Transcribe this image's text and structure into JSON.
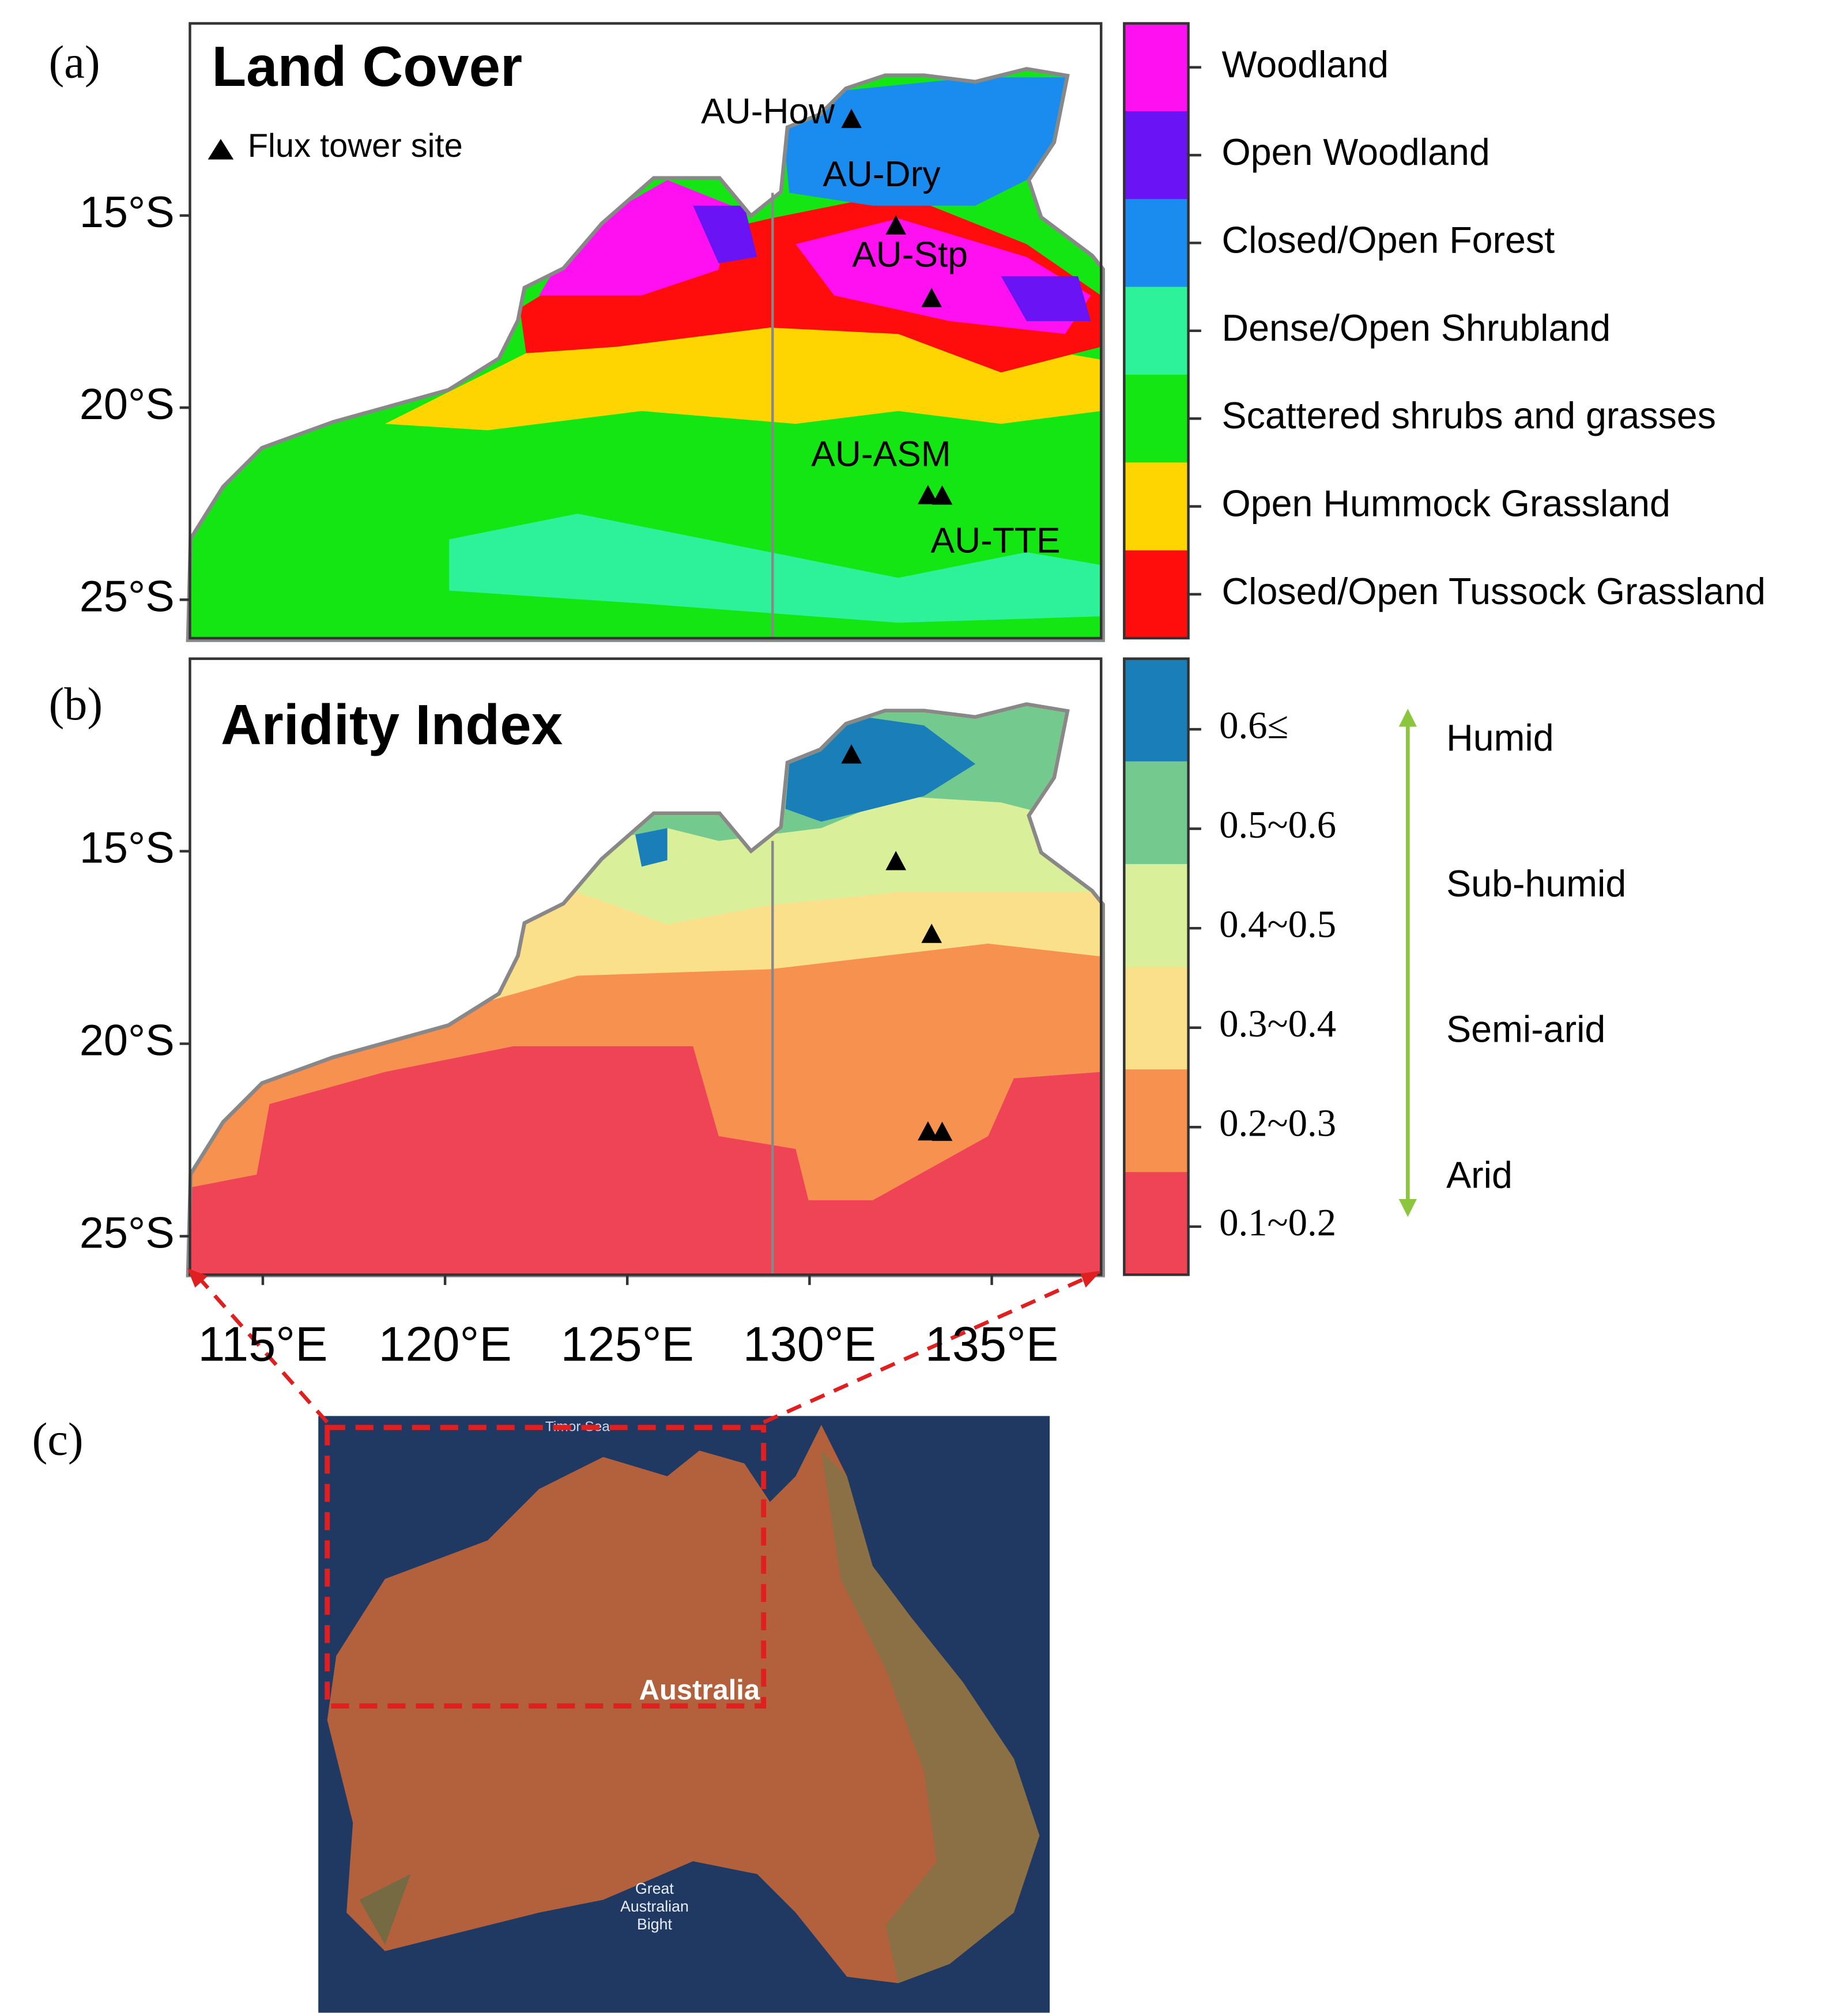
{
  "panel_a": {
    "label": "(a)",
    "title": "Land Cover",
    "marker_legend": "Flux tower site",
    "legend": [
      {
        "label": "Woodland",
        "color": "#ff10f0"
      },
      {
        "label": "Open Woodland",
        "color": "#6a14f5"
      },
      {
        "label": "Closed/Open Forest",
        "color": "#1a8cf0"
      },
      {
        "label": "Dense/Open Shrubland",
        "color": "#2df29a"
      },
      {
        "label": "Scattered shrubs and grasses",
        "color": "#14e614"
      },
      {
        "label": "Open Hummock Grassland",
        "color": "#ffd500"
      },
      {
        "label": "Closed/Open Tussock Grassland",
        "color": "#ff0d0d"
      }
    ]
  },
  "panel_b": {
    "label": "(b)",
    "title": "Aridity Index",
    "legend": [
      {
        "label": "0.6≤",
        "color": "#1a7fb8"
      },
      {
        "label": "0.5~0.6",
        "color": "#74c98f"
      },
      {
        "label": "0.4~0.5",
        "color": "#d9ef9a"
      },
      {
        "label": "0.3~0.4",
        "color": "#fbe08c"
      },
      {
        "label": "0.2~0.3",
        "color": "#f79150"
      },
      {
        "label": "0.1~0.2",
        "color": "#ef4455"
      }
    ],
    "zones": [
      "Humid",
      "Sub-humid",
      "Semi-arid",
      "Arid"
    ]
  },
  "map": {
    "xlim": [
      113,
      138
    ],
    "ylim": [
      -26,
      -10
    ],
    "xticks": [
      {
        "value": 115,
        "label": "115°E"
      },
      {
        "value": 120,
        "label": "120°E"
      },
      {
        "value": 125,
        "label": "125°E"
      },
      {
        "value": 130,
        "label": "130°E"
      },
      {
        "value": 135,
        "label": "135°E"
      }
    ],
    "yticks": [
      {
        "value": -15,
        "label": "15°S"
      },
      {
        "value": -20,
        "label": "20°S"
      },
      {
        "value": -25,
        "label": "25°S"
      }
    ]
  },
  "sites": [
    {
      "name": "AU-How",
      "lon": 131.15,
      "lat": -12.49
    },
    {
      "name": "AU-Dry",
      "lon": 132.37,
      "lat": -15.26
    },
    {
      "name": "AU-Stp",
      "lon": 133.35,
      "lat": -17.15
    },
    {
      "name": "AU-ASM",
      "lon": 133.25,
      "lat": -22.28
    },
    {
      "name": "AU-TTE",
      "lon": 133.64,
      "lat": -22.29
    }
  ],
  "panel_c": {
    "label": "(c)",
    "sea_label": "Timor Sea",
    "country_label": "Australia",
    "bight_label": [
      "Great",
      "Australian",
      "Bight"
    ]
  }
}
